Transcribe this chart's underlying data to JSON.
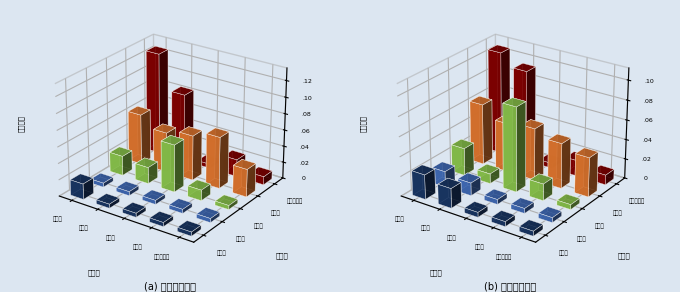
{
  "industries": [
    "製造業",
    "建設業",
    "卵売業",
    "小売業",
    "サービス業"
  ],
  "ylabel": "波及因子",
  "background_color": "#dce6f1",
  "title_a": "(a) 川下への波及",
  "title_b": "(b) 川上への波及",
  "xlabel_a": "販売先",
  "xlabel2_a": "販売元",
  "xlabel_b": "仕入先",
  "xlabel2_b": "仕入元",
  "colors": [
    "#1a3a6b",
    "#4472c4",
    "#92d050",
    "#ed7d31",
    "#8b0000"
  ],
  "data_a": [
    [
      0.019,
      0.005,
      0.024,
      0.062,
      0.125
    ],
    [
      0.005,
      0.005,
      0.02,
      0.049,
      0.083
    ],
    [
      0.005,
      0.005,
      0.058,
      0.055,
      0.005
    ],
    [
      0.005,
      0.005,
      0.013,
      0.063,
      0.021
    ],
    [
      0.005,
      0.005,
      0.005,
      0.034,
      0.01
    ]
  ],
  "data_b": [
    [
      0.025,
      0.016,
      0.028,
      0.062,
      0.105
    ],
    [
      0.02,
      0.013,
      0.01,
      0.05,
      0.093
    ],
    [
      0.005,
      0.005,
      0.086,
      0.053,
      0.005
    ],
    [
      0.005,
      0.005,
      0.017,
      0.046,
      0.016
    ],
    [
      0.005,
      0.005,
      0.005,
      0.04,
      0.01
    ]
  ],
  "ylim_a": [
    0,
    0.135
  ],
  "ylim_b": [
    0,
    0.112
  ],
  "yticks_a": [
    0,
    0.02,
    0.04,
    0.06,
    0.08,
    0.1,
    0.12
  ],
  "yticks_b": [
    0,
    0.02,
    0.04,
    0.06,
    0.08,
    0.1
  ],
  "elev": 25,
  "azim": -55,
  "bar_width": 0.5,
  "bar_depth": 0.5
}
